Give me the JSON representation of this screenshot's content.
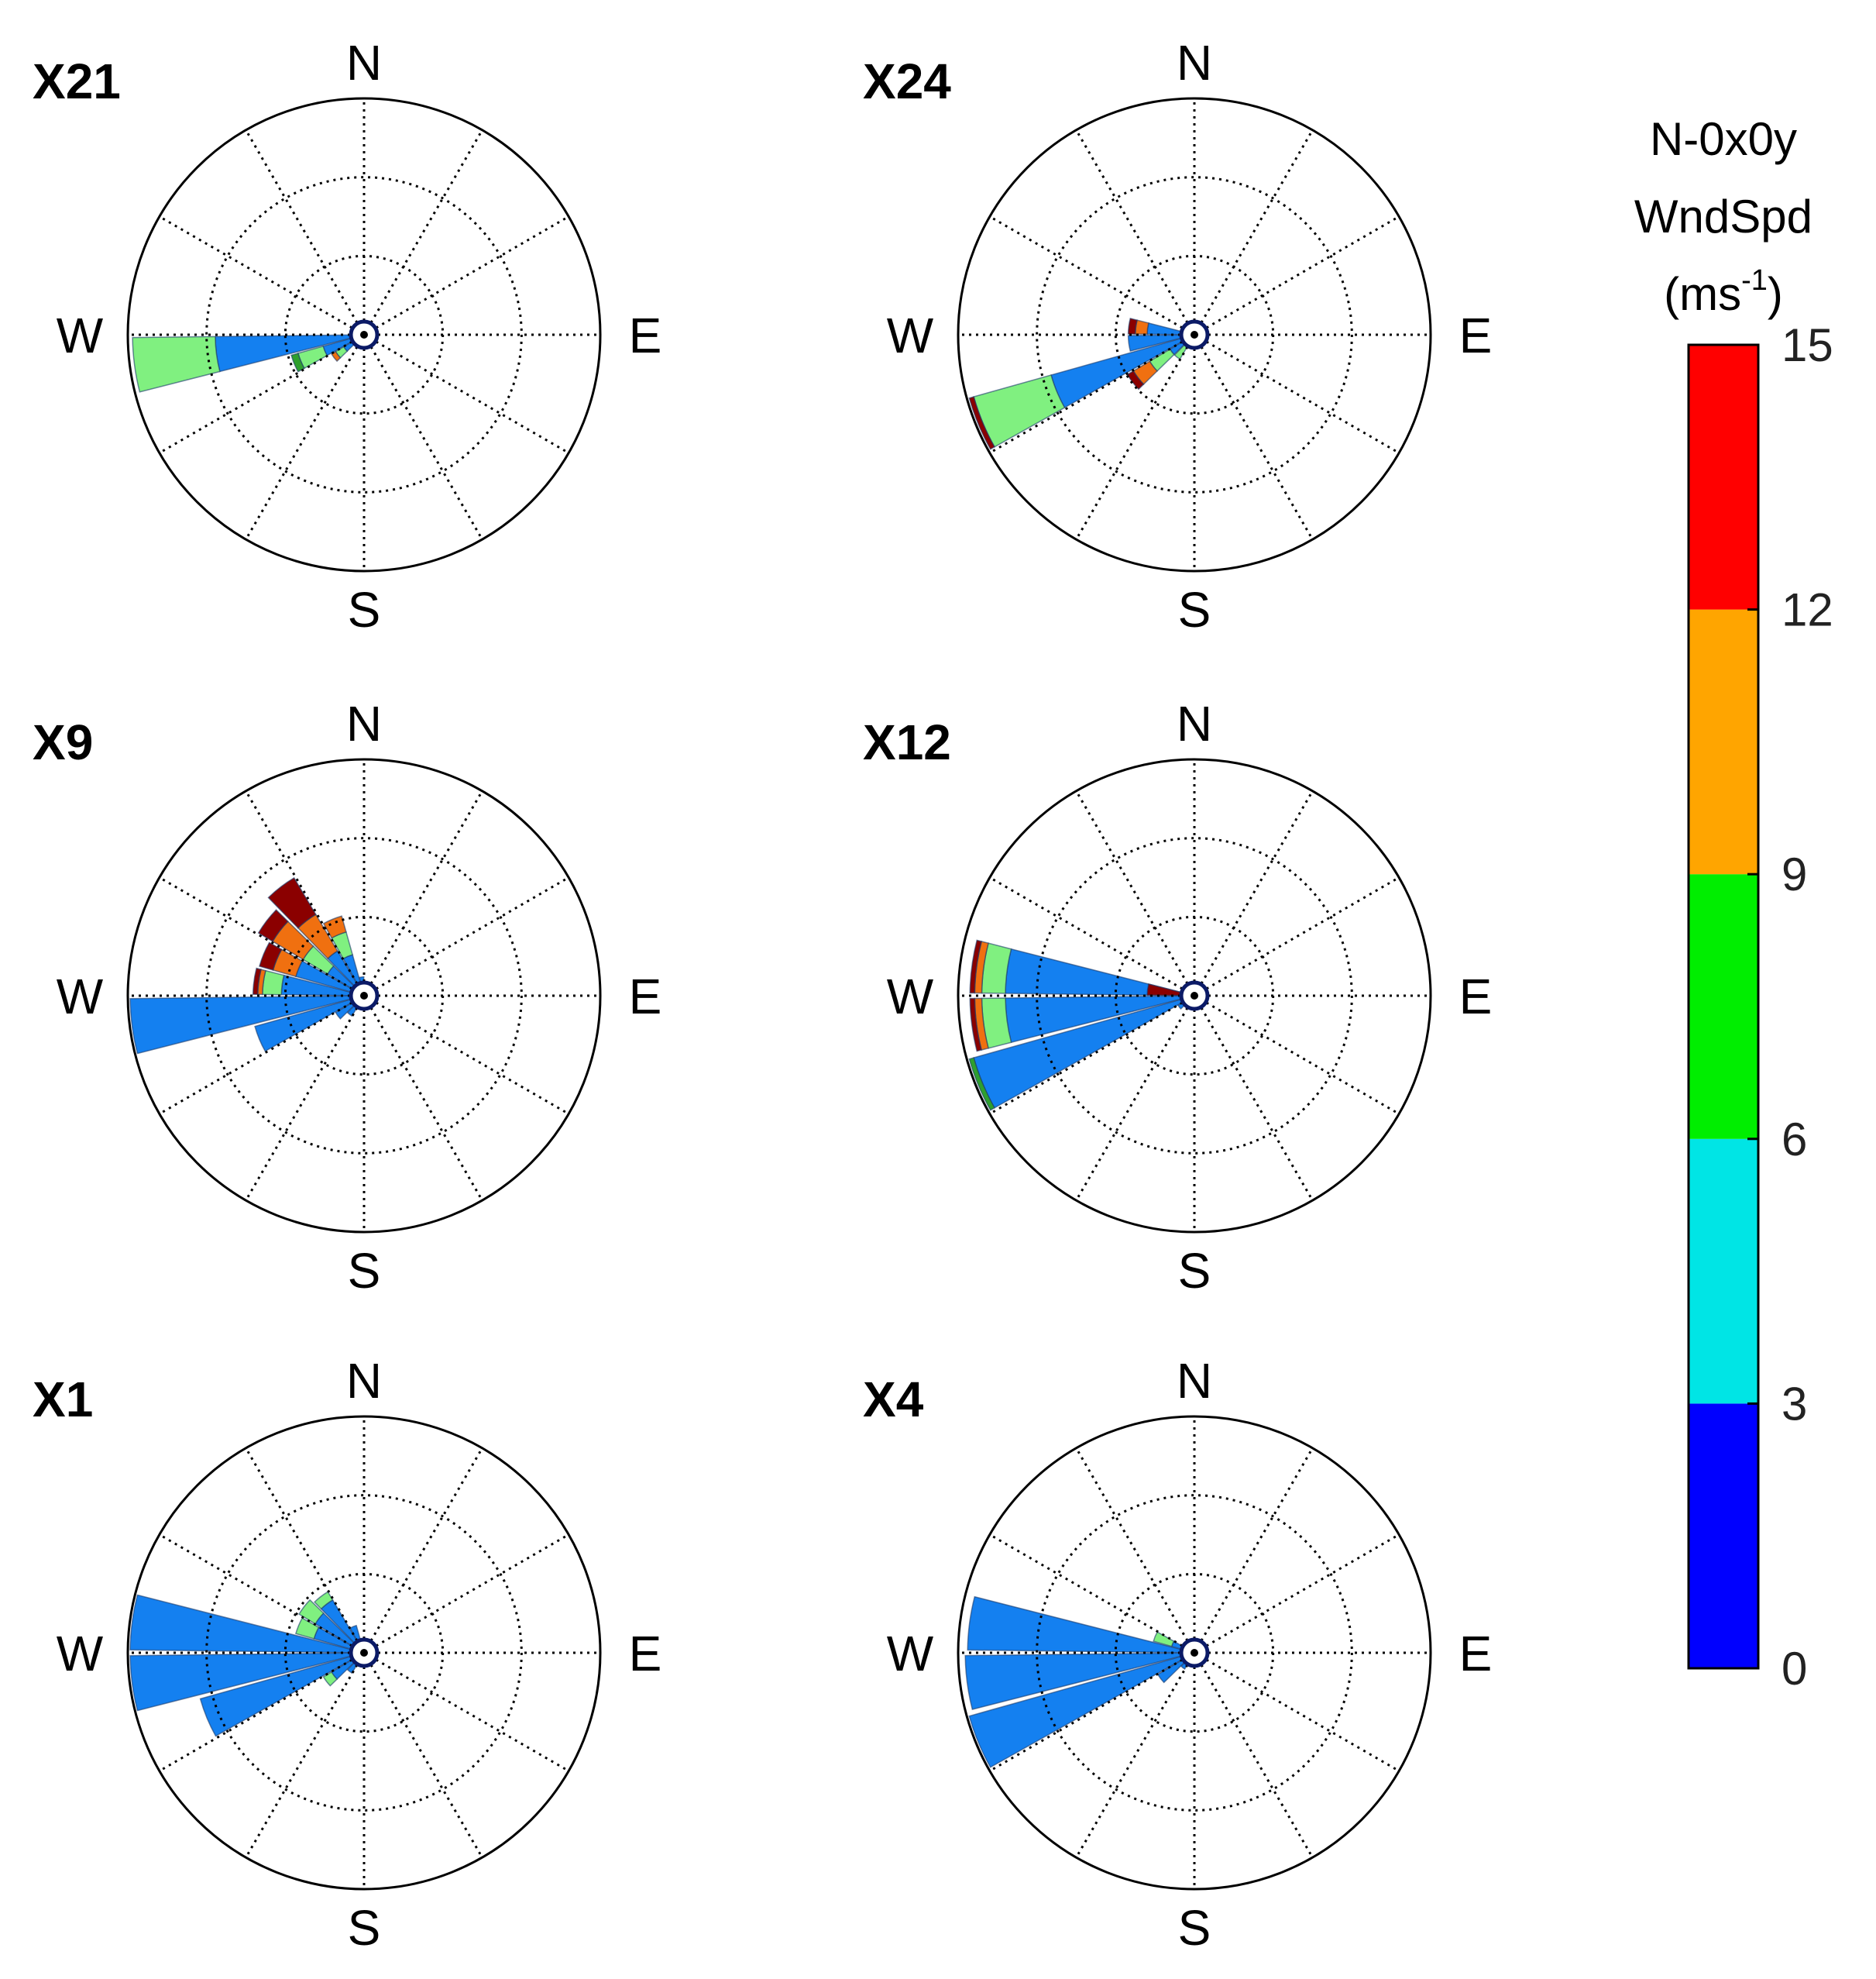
{
  "colorbar": {
    "title_line1": "N-0x0y",
    "title_line2": "WndSpd",
    "unit_base": "(ms",
    "unit_exp": "-1",
    "unit_close": ")",
    "ticks": [
      "0",
      "3",
      "6",
      "9",
      "12",
      "15"
    ],
    "bands": [
      {
        "from": 0,
        "to": 3,
        "color": "#0000ff"
      },
      {
        "from": 3,
        "to": 6,
        "color": "#00e5e5"
      },
      {
        "from": 6,
        "to": 9,
        "color": "#00ee00"
      },
      {
        "from": 9,
        "to": 12,
        "color": "#ffa500"
      },
      {
        "from": 12,
        "to": 15,
        "color": "#ff0000"
      }
    ]
  },
  "compass": {
    "n": "N",
    "e": "E",
    "s": "S",
    "w": "W"
  },
  "chart_data": [
    {
      "type": "windrose",
      "title": "X21",
      "rmax": 1.0,
      "petals": [
        {
          "dir": 262.5,
          "segments": [
            {
              "r0": 0,
              "r1": 0.63,
              "color": "#1480f0"
            },
            {
              "r0": 0.63,
              "r1": 0.98,
              "color": "#80f080"
            }
          ]
        },
        {
          "dir": 247.5,
          "segments": [
            {
              "r0": 0,
              "r1": 0.18,
              "color": "#1480f0"
            },
            {
              "r0": 0.18,
              "r1": 0.29,
              "color": "#80f080"
            },
            {
              "r0": 0.29,
              "r1": 0.32,
              "color": "#2ea02e"
            }
          ]
        },
        {
          "dir": 232.5,
          "segments": [
            {
              "r0": 0,
              "r1": 0.1,
              "color": "#1480f0"
            },
            {
              "r0": 0.1,
              "r1": 0.14,
              "color": "#80f080"
            },
            {
              "r0": 0.14,
              "r1": 0.16,
              "color": "#f07010"
            }
          ]
        },
        {
          "dir": 217.5,
          "segments": [
            {
              "r0": 0,
              "r1": 0.04,
              "color": "#1480f0"
            },
            {
              "r0": 0.04,
              "r1": 0.06,
              "color": "#f07010"
            }
          ]
        },
        {
          "dir": 202.5,
          "segments": [
            {
              "r0": 0,
              "r1": 0.02,
              "color": "#1480f0"
            },
            {
              "r0": 0.02,
              "r1": 0.04,
              "color": "#f07010"
            }
          ]
        },
        {
          "dir": 172.5,
          "segments": [
            {
              "r0": 0,
              "r1": 0.04,
              "color": "#f07010"
            }
          ]
        }
      ]
    },
    {
      "type": "windrose",
      "title": "X24",
      "rmax": 1.0,
      "petals": [
        {
          "dir": 262.5,
          "segments": [
            {
              "r0": 0,
              "r1": 0.28,
              "color": "#1480f0"
            }
          ]
        },
        {
          "dir": 277.5,
          "segments": [
            {
              "r0": 0,
              "r1": 0.2,
              "color": "#1480f0"
            },
            {
              "r0": 0.2,
              "r1": 0.25,
              "color": "#f07010"
            },
            {
              "r0": 0.25,
              "r1": 0.28,
              "color": "#8b0000"
            }
          ]
        },
        {
          "dir": 247.5,
          "segments": [
            {
              "r0": 0,
              "r1": 0.63,
              "color": "#1480f0"
            },
            {
              "r0": 0.63,
              "r1": 0.97,
              "color": "#80f080"
            },
            {
              "r0": 0.97,
              "r1": 0.99,
              "color": "#8b0000"
            }
          ]
        },
        {
          "dir": 232.5,
          "segments": [
            {
              "r0": 0,
              "r1": 0.12,
              "color": "#1480f0"
            },
            {
              "r0": 0.12,
              "r1": 0.22,
              "color": "#80f080"
            },
            {
              "r0": 0.22,
              "r1": 0.3,
              "color": "#f07010"
            },
            {
              "r0": 0.3,
              "r1": 0.33,
              "color": "#8b0000"
            }
          ]
        },
        {
          "dir": 217.5,
          "segments": [
            {
              "r0": 0,
              "r1": 0.12,
              "color": "#80f080"
            }
          ]
        },
        {
          "dir": 202.5,
          "segments": [
            {
              "r0": 0,
              "r1": 0.05,
              "color": "#80f080"
            }
          ]
        }
      ]
    },
    {
      "type": "windrose",
      "title": "X9",
      "rmax": 1.0,
      "petals": [
        {
          "dir": 277.5,
          "segments": [
            {
              "r0": 0,
              "r1": 0.35,
              "color": "#1480f0"
            },
            {
              "r0": 0.35,
              "r1": 0.43,
              "color": "#80f080"
            },
            {
              "r0": 0.43,
              "r1": 0.45,
              "color": "#f07010"
            },
            {
              "r0": 0.45,
              "r1": 0.47,
              "color": "#8b0000"
            }
          ]
        },
        {
          "dir": 262.5,
          "segments": [
            {
              "r0": 0,
              "r1": 0.99,
              "color": "#1480f0"
            }
          ]
        },
        {
          "dir": 247.5,
          "segments": [
            {
              "r0": 0,
              "r1": 0.48,
              "color": "#1480f0"
            }
          ]
        },
        {
          "dir": 292.5,
          "segments": [
            {
              "r0": 0,
              "r1": 0.3,
              "color": "#1480f0"
            },
            {
              "r0": 0.3,
              "r1": 0.4,
              "color": "#f07010"
            },
            {
              "r0": 0.4,
              "r1": 0.46,
              "color": "#8b0000"
            }
          ]
        },
        {
          "dir": 307.5,
          "segments": [
            {
              "r0": 0,
              "r1": 0.18,
              "color": "#1480f0"
            },
            {
              "r0": 0.18,
              "r1": 0.3,
              "color": "#80f080"
            },
            {
              "r0": 0.3,
              "r1": 0.45,
              "color": "#f07010"
            },
            {
              "r0": 0.45,
              "r1": 0.52,
              "color": "#8b0000"
            }
          ]
        },
        {
          "dir": 322.5,
          "segments": [
            {
              "r0": 0,
              "r1": 0.22,
              "color": "#1480f0"
            },
            {
              "r0": 0.22,
              "r1": 0.4,
              "color": "#f07010"
            },
            {
              "r0": 0.4,
              "r1": 0.58,
              "color": "#8b0000"
            }
          ]
        },
        {
          "dir": 337.5,
          "segments": [
            {
              "r0": 0,
              "r1": 0.18,
              "color": "#1480f0"
            },
            {
              "r0": 0.18,
              "r1": 0.28,
              "color": "#80f080"
            },
            {
              "r0": 0.28,
              "r1": 0.35,
              "color": "#f07010"
            }
          ]
        },
        {
          "dir": 352.5,
          "segments": [
            {
              "r0": 0,
              "r1": 0.08,
              "color": "#1480f0"
            }
          ]
        },
        {
          "dir": 232.5,
          "segments": [
            {
              "r0": 0,
              "r1": 0.14,
              "color": "#1480f0"
            }
          ]
        },
        {
          "dir": 217.5,
          "segments": [
            {
              "r0": 0,
              "r1": 0.1,
              "color": "#1480f0"
            }
          ]
        }
      ]
    },
    {
      "type": "windrose",
      "title": "X12",
      "rmax": 1.0,
      "petals": [
        {
          "dir": 262.5,
          "segments": [
            {
              "r0": 0,
              "r1": 0.8,
              "color": "#1480f0"
            },
            {
              "r0": 0.8,
              "r1": 0.9,
              "color": "#80f080"
            },
            {
              "r0": 0.9,
              "r1": 0.93,
              "color": "#f07010"
            },
            {
              "r0": 0.93,
              "r1": 0.95,
              "color": "#8b0000"
            }
          ]
        },
        {
          "dir": 277.5,
          "segments": [
            {
              "r0": 0,
              "r1": 0.8,
              "color": "#1480f0"
            },
            {
              "r0": 0.8,
              "r1": 0.9,
              "color": "#80f080"
            },
            {
              "r0": 0.9,
              "r1": 0.93,
              "color": "#f07010"
            },
            {
              "r0": 0.93,
              "r1": 0.95,
              "color": "#8b0000"
            }
          ]
        },
        {
          "dir": 247.5,
          "segments": [
            {
              "r0": 0,
              "r1": 0.97,
              "color": "#1480f0"
            },
            {
              "r0": 0.97,
              "r1": 0.99,
              "color": "#2ea02e"
            }
          ]
        },
        {
          "dir": 277.51,
          "segments": [
            {
              "r0": 0,
              "r1": 0.05,
              "color": "#1480f0"
            },
            {
              "r0": 0.05,
              "r1": 0.2,
              "color": "#8b0000"
            }
          ]
        },
        {
          "dir": 232.5,
          "segments": [
            {
              "r0": 0,
              "r1": 0.08,
              "color": "#1480f0"
            }
          ]
        }
      ]
    },
    {
      "type": "windrose",
      "title": "X1",
      "rmax": 1.0,
      "petals": [
        {
          "dir": 277.5,
          "segments": [
            {
              "r0": 0,
              "r1": 0.99,
              "color": "#1480f0"
            }
          ]
        },
        {
          "dir": 262.5,
          "segments": [
            {
              "r0": 0,
              "r1": 0.99,
              "color": "#1480f0"
            }
          ]
        },
        {
          "dir": 247.5,
          "segments": [
            {
              "r0": 0,
              "r1": 0.72,
              "color": "#1480f0"
            }
          ]
        },
        {
          "dir": 292.5,
          "segments": [
            {
              "r0": 0,
              "r1": 0.22,
              "color": "#1480f0"
            },
            {
              "r0": 0.22,
              "r1": 0.3,
              "color": "#80f080"
            }
          ]
        },
        {
          "dir": 307.5,
          "segments": [
            {
              "r0": 0,
              "r1": 0.24,
              "color": "#1480f0"
            },
            {
              "r0": 0.24,
              "r1": 0.32,
              "color": "#80f080"
            }
          ]
        },
        {
          "dir": 322.5,
          "segments": [
            {
              "r0": 0,
              "r1": 0.26,
              "color": "#1480f0"
            },
            {
              "r0": 0.26,
              "r1": 0.3,
              "color": "#80f080"
            }
          ]
        },
        {
          "dir": 337.5,
          "segments": [
            {
              "r0": 0,
              "r1": 0.12,
              "color": "#1480f0"
            }
          ]
        },
        {
          "dir": 232.5,
          "segments": [
            {
              "r0": 0,
              "r1": 0.16,
              "color": "#1480f0"
            },
            {
              "r0": 0.16,
              "r1": 0.2,
              "color": "#80f080"
            }
          ]
        },
        {
          "dir": 217.5,
          "segments": [
            {
              "r0": 0,
              "r1": 0.1,
              "color": "#1480f0"
            }
          ]
        }
      ]
    },
    {
      "type": "windrose",
      "title": "X4",
      "rmax": 1.0,
      "petals": [
        {
          "dir": 277.5,
          "segments": [
            {
              "r0": 0,
              "r1": 0.96,
              "color": "#1480f0"
            }
          ]
        },
        {
          "dir": 262.5,
          "segments": [
            {
              "r0": 0,
              "r1": 0.97,
              "color": "#1480f0"
            }
          ]
        },
        {
          "dir": 247.5,
          "segments": [
            {
              "r0": 0,
              "r1": 0.99,
              "color": "#1480f0"
            }
          ]
        },
        {
          "dir": 292.5,
          "segments": [
            {
              "r0": 0,
              "r1": 0.1,
              "color": "#1480f0"
            },
            {
              "r0": 0.1,
              "r1": 0.18,
              "color": "#80f080"
            }
          ]
        },
        {
          "dir": 232.5,
          "segments": [
            {
              "r0": 0,
              "r1": 0.18,
              "color": "#1480f0"
            }
          ]
        },
        {
          "dir": 217.5,
          "segments": [
            {
              "r0": 0,
              "r1": 0.08,
              "color": "#1480f0"
            }
          ]
        }
      ]
    }
  ]
}
